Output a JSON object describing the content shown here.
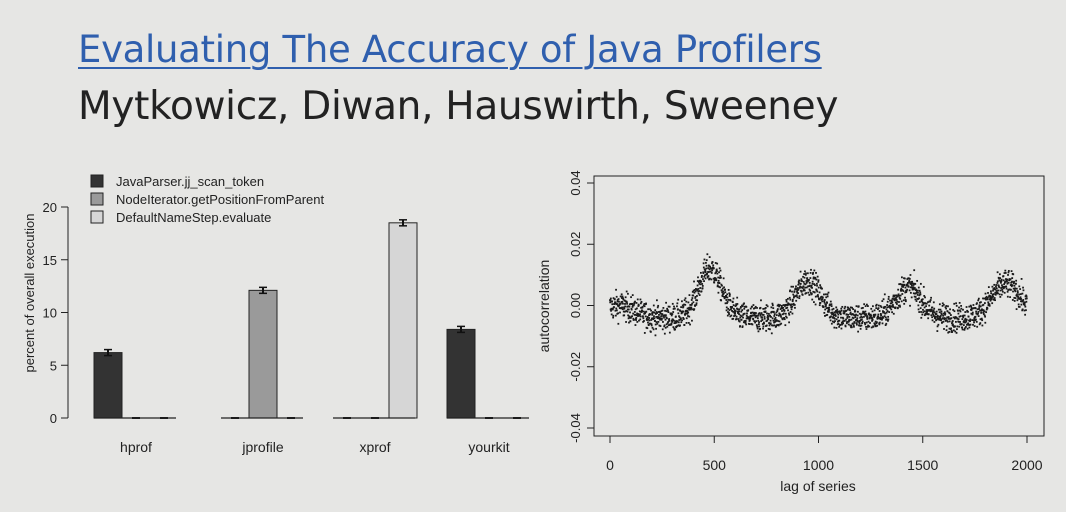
{
  "slide": {
    "title": "Evaluating The Accuracy of Java Profilers",
    "subtitle": "Mytkowicz, Diwan, Hauswirth, Sweeney"
  },
  "chart_data": [
    {
      "type": "bar",
      "title": "",
      "xlabel": "",
      "ylabel": "percent of overall execution",
      "ylim": [
        0,
        20
      ],
      "yticks": [
        0,
        5,
        10,
        15,
        20
      ],
      "legend_position": "top-left",
      "categories": [
        "hprof",
        "jprofile",
        "xprof",
        "yourkit"
      ],
      "series": [
        {
          "name": "JavaParser.jj_scan_token",
          "color": "#333333",
          "values": [
            6.2,
            0,
            0,
            8.4
          ]
        },
        {
          "name": "NodeIterator.getPositionFromParent",
          "color": "#9a9a9a",
          "values": [
            0,
            12.1,
            0,
            0
          ]
        },
        {
          "name": "DefaultNameStep.evaluate",
          "color": "#d6d6d6",
          "values": [
            0,
            0,
            18.5,
            0
          ]
        }
      ],
      "error_bars": true
    },
    {
      "type": "scatter",
      "title": "",
      "xlabel": "lag of series",
      "ylabel": "autocorrelation",
      "xlim": [
        0,
        2000
      ],
      "ylim": [
        -0.04,
        0.04
      ],
      "xticks": [
        0,
        500,
        1000,
        1500,
        2000
      ],
      "yticks": [
        "-0.04",
        "-0.02",
        "0.00",
        "0.02",
        "0.04"
      ],
      "n_points": 2000,
      "pattern": "periodic with peaks near lags 480, 950, 1430, 1900; values mostly between -0.015 and 0.03"
    }
  ]
}
